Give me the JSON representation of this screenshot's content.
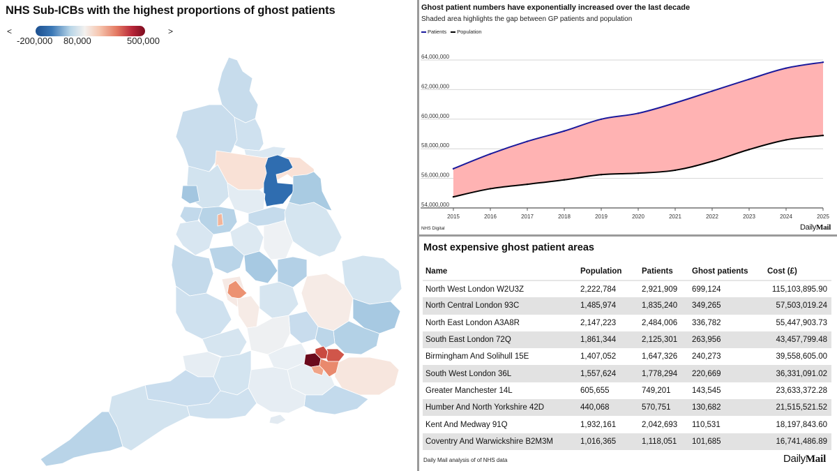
{
  "map": {
    "title": "NHS Sub-ICBs with the highest proportions of ghost patients",
    "legend": {
      "left_arrow": "<",
      "right_arrow": ">",
      "ticks": [
        "-200,000",
        "80,000",
        "500,000"
      ],
      "min": -200000,
      "mid": 80000,
      "max": 500000,
      "colors": {
        "low": "#1c4f8f",
        "mid": "#f4f1ef",
        "high": "#7d0b1f"
      }
    },
    "highlighted_regions": [
      {
        "name": "North West London",
        "ghost_patients": 699124,
        "color": "#6b0a1c"
      },
      {
        "name": "North Central London",
        "ghost_patients": 349265,
        "color": "#c94a40"
      },
      {
        "name": "North East London",
        "ghost_patients": 336782,
        "color": "#d0564a"
      },
      {
        "name": "South East London",
        "ghost_patients": 263956,
        "color": "#e9896d"
      },
      {
        "name": "South West London",
        "ghost_patients": 220669,
        "color": "#f0a488"
      },
      {
        "name": "Birmingham And Solihull",
        "ghost_patients": 240273,
        "color": "#ec9272"
      },
      {
        "name": "Leeds / West Yorkshire (blue area)",
        "color": "#2f6db0"
      }
    ]
  },
  "chart_data": {
    "type": "area",
    "title": "Ghost patient numbers have exponentially increased over the last decade",
    "subtitle": "Shaded area highlights the gap between GP patients and population",
    "x": [
      2015,
      2016,
      2017,
      2018,
      2019,
      2020,
      2021,
      2022,
      2023,
      2024,
      2025
    ],
    "series": [
      {
        "name": "Patients",
        "color": "#1a1a9c",
        "values": [
          56650000,
          57650000,
          58500000,
          59200000,
          60000000,
          60400000,
          61100000,
          61900000,
          62700000,
          63450000,
          63850000
        ]
      },
      {
        "name": "Population",
        "color": "#000000",
        "values": [
          54750000,
          55300000,
          55600000,
          55900000,
          56250000,
          56350000,
          56550000,
          57150000,
          57950000,
          58600000,
          58900000
        ]
      }
    ],
    "fill_color": "#ffb3b3",
    "ylim": [
      54000000,
      64000000
    ],
    "yticks": [
      54000000,
      56000000,
      58000000,
      60000000,
      62000000,
      64000000
    ],
    "ytick_labels": [
      "54,000,000",
      "56,000,000",
      "58,000,000",
      "60,000,000",
      "62,000,000",
      "64,000,000"
    ],
    "xlabel": "",
    "ylabel": "",
    "grid": true,
    "legend": "top-left",
    "source": "NHS Digital",
    "brand": {
      "daily": "Daily",
      "mail": "Mail"
    }
  },
  "table": {
    "title": "Most expensive ghost patient areas",
    "columns": [
      "Name",
      "Population",
      "Patients",
      "Ghost patients",
      "Cost (£)"
    ],
    "rows": [
      [
        "North West London W2U3Z",
        "2,222,784",
        "2,921,909",
        "699,124",
        "115,103,895.90"
      ],
      [
        "North Central London 93C",
        "1,485,974",
        "1,835,240",
        "349,265",
        "57,503,019.24"
      ],
      [
        "North East London A3A8R",
        "2,147,223",
        "2,484,006",
        "336,782",
        "55,447,903.73"
      ],
      [
        "South East London 72Q",
        "1,861,344",
        "2,125,301",
        "263,956",
        "43,457,799.48"
      ],
      [
        "Birmingham And Solihull 15E",
        "1,407,052",
        "1,647,326",
        "240,273",
        "39,558,605.00"
      ],
      [
        "South West London 36L",
        "1,557,624",
        "1,778,294",
        "220,669",
        "36,331,091.02"
      ],
      [
        "Greater Manchester 14L",
        "605,655",
        "749,201",
        "143,545",
        "23,633,372.28"
      ],
      [
        "Humber And North Yorkshire 42D",
        "440,068",
        "570,751",
        "130,682",
        "21,515,521.52"
      ],
      [
        "Kent And Medway 91Q",
        "1,932,161",
        "2,042,693",
        "110,531",
        "18,197,843.60"
      ],
      [
        "Coventry And Warwickshire B2M3M",
        "1,016,365",
        "1,118,051",
        "101,685",
        "16,741,486.89"
      ]
    ],
    "source": "Daily Mail analysis of of NHS data",
    "brand": {
      "daily": "Daily",
      "mail": "Mail"
    }
  }
}
